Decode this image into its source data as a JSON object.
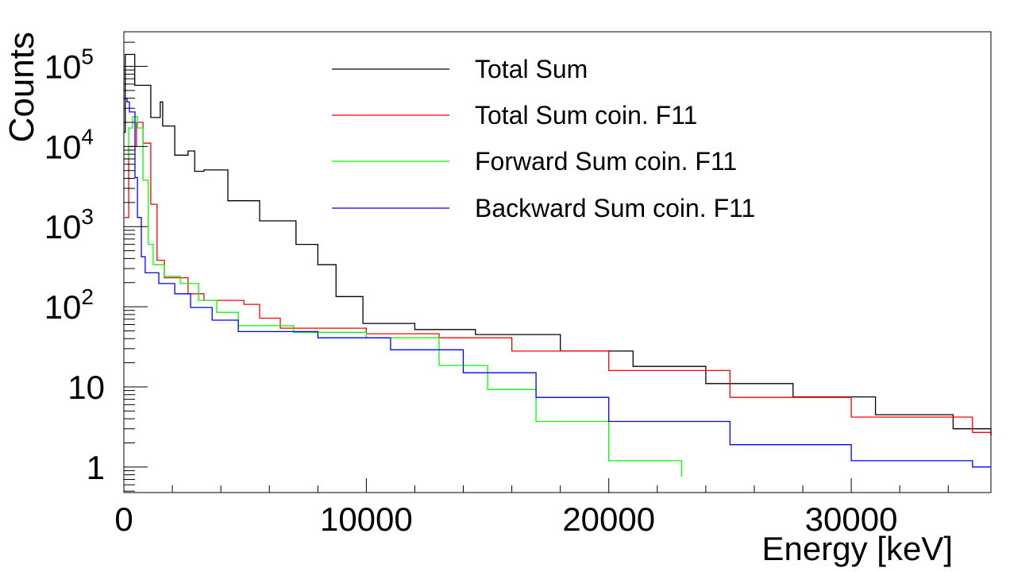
{
  "chart_data": {
    "type": "line",
    "title": "",
    "xlabel": "Energy [keV]",
    "ylabel": "Counts",
    "xlim": [
      0,
      35760
    ],
    "ylim": [
      0.48,
      270000
    ],
    "yscale": "log",
    "grid": false,
    "legend_position": "top-center",
    "x_ticks": [
      {
        "value": 0,
        "label": "0"
      },
      {
        "value": 10000,
        "label": "10000"
      },
      {
        "value": 20000,
        "label": "20000"
      },
      {
        "value": 30000,
        "label": "30000"
      }
    ],
    "y_ticks": [
      {
        "value": 1,
        "label": "1"
      },
      {
        "value": 10,
        "label": "10"
      },
      {
        "value": 100,
        "label": "10",
        "exp": "2"
      },
      {
        "value": 1000,
        "label": "10",
        "exp": "3"
      },
      {
        "value": 10000,
        "label": "10",
        "exp": "4"
      },
      {
        "value": 100000,
        "label": "10",
        "exp": "5"
      }
    ],
    "series": [
      {
        "name": "Total Sum",
        "color": "#000000",
        "x": [
          0,
          60,
          450,
          1110,
          1500,
          1600,
          2100,
          2650,
          2920,
          3300,
          4290,
          5600,
          7100,
          8000,
          8750,
          9860,
          12000,
          14500,
          18000,
          21000,
          24000,
          27600,
          31000,
          34200,
          35760
        ],
        "y": [
          15000,
          141000,
          58000,
          23000,
          36000,
          18000,
          7800,
          8800,
          4900,
          5100,
          2100,
          1180,
          600,
          335,
          134,
          62,
          52,
          45,
          28,
          18,
          11,
          7.5,
          4.5,
          3,
          2.5
        ]
      },
      {
        "name": "Total Sum coin. F11",
        "color": "#ff0000",
        "x": [
          30,
          200,
          520,
          790,
          1110,
          1370,
          1670,
          2650,
          3300,
          4490,
          4950,
          5600,
          6450,
          10000,
          13000,
          16000,
          20000,
          25000,
          30000,
          35000,
          35760
        ],
        "y": [
          1300,
          10000,
          20000,
          11000,
          1900,
          380,
          230,
          145,
          120,
          120,
          107,
          72,
          54,
          46,
          41,
          28,
          16,
          7.4,
          4.2,
          2.7,
          2.5
        ]
      },
      {
        "name": "Forward Sum coin. F11",
        "color": "#00ff00",
        "x": [
          30,
          200,
          360,
          560,
          790,
          1010,
          1210,
          1670,
          2330,
          3080,
          3830,
          4720,
          7000,
          10000,
          13000,
          15000,
          17000,
          20000,
          23000
        ],
        "y": [
          7000,
          17000,
          23500,
          17000,
          3800,
          600,
          335,
          240,
          195,
          120,
          85,
          58,
          48,
          41,
          18.5,
          9.3,
          3.7,
          1.2,
          0.76
        ]
      },
      {
        "name": "Backward Sum coin. F11",
        "color": "#0000ff",
        "x": [
          0,
          130,
          230,
          460,
          560,
          720,
          880,
          1440,
          2100,
          2750,
          3640,
          4720,
          8000,
          11000,
          14000,
          17000,
          20000,
          25000,
          30000,
          35000,
          35760
        ],
        "y": [
          40000,
          36000,
          27000,
          4100,
          1300,
          420,
          265,
          195,
          145,
          98,
          68,
          49,
          41,
          29,
          15,
          7.4,
          3.7,
          1.9,
          1.2,
          1,
          1
        ]
      }
    ]
  }
}
